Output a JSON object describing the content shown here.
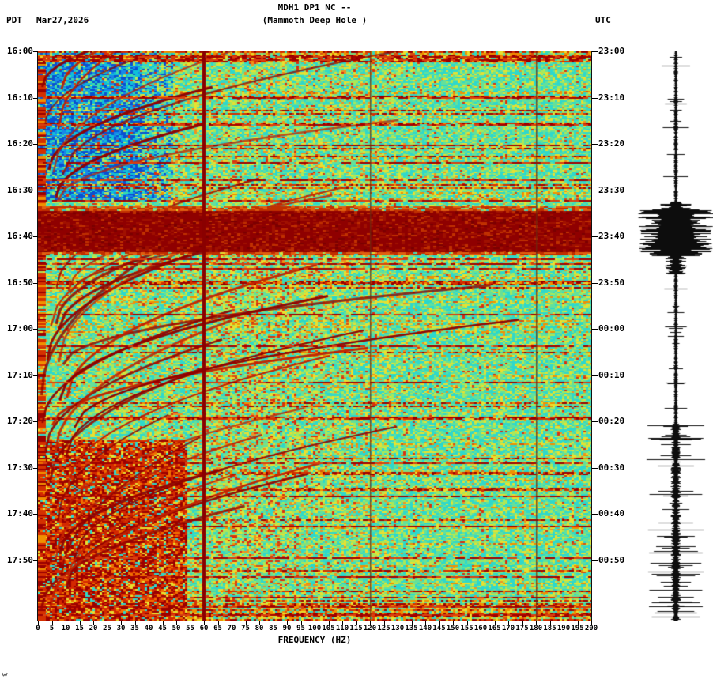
{
  "header": {
    "station_line": "MDH1 DP1 NC --",
    "location_line": "(Mammoth Deep Hole )",
    "tz_left": "PDT",
    "date": "Mar27,2026",
    "tz_right": "UTC"
  },
  "left_axis": {
    "timezone": "PDT",
    "labels": [
      "16:00",
      "16:10",
      "16:20",
      "16:30",
      "16:40",
      "16:50",
      "17:00",
      "17:10",
      "17:20",
      "17:30",
      "17:40",
      "17:50"
    ]
  },
  "right_axis": {
    "timezone": "UTC",
    "labels": [
      "23:00",
      "23:10",
      "23:20",
      "23:30",
      "23:40",
      "23:50",
      "00:00",
      "00:10",
      "00:20",
      "00:30",
      "00:40",
      "00:50"
    ]
  },
  "x_axis": {
    "title": "FREQUENCY (HZ)",
    "tick_labels": [
      "0",
      "5",
      "10",
      "15",
      "20",
      "25",
      "30",
      "35",
      "40",
      "45",
      "50",
      "55",
      "60",
      "65",
      "70",
      "75",
      "80",
      "85",
      "90",
      "95",
      "100",
      "105",
      "110",
      "115",
      "120",
      "125",
      "130",
      "135",
      "140",
      "145",
      "150",
      "155",
      "160",
      "165",
      "170",
      "175",
      "180",
      "185",
      "190",
      "195",
      "200"
    ]
  },
  "chart_data": {
    "type": "heatmap",
    "subtype": "seismic-spectrogram",
    "title": "MDH1 DP1 NC --",
    "subtitle": "(Mammoth Deep Hole )",
    "xlabel": "FREQUENCY (HZ)",
    "x_range_hz": [
      0,
      200
    ],
    "x_tick_step_hz": 5,
    "left_time_axis": {
      "timezone": "PDT",
      "date": "Mar27,2026",
      "first_tick": "16:00",
      "last_tick": "17:50",
      "tick_interval_min": 10
    },
    "right_time_axis": {
      "timezone": "UTC",
      "first_tick": "23:00",
      "last_tick": "00:50",
      "tick_interval_min": 10
    },
    "grid": false,
    "legend_position": "none",
    "colormap": "jet",
    "notable_features": [
      "broadband high-amplitude dark-red band across all frequencies ~16:34-16:43 PDT (23:34-23:43 UTC)",
      "persistent narrowband dark-red vertical line at 60 Hz",
      "faint narrowband vertical lines near 120 Hz and 180 Hz",
      "repeating upward-gliding harmonic red arcs between ~5 and ~130 Hz throughout the record",
      "blue low-power patch 0-35 Hz from 16:00 to ~16:30",
      "strong low-frequency (0-50 Hz) red energy from ~17:22 PDT to end of plot",
      "many thin broadband horizontal noise-burst lines",
      "persistent warm energy along left (lowest frequency) edge"
    ],
    "side_trace": {
      "description": "vertical seismogram amplitude trace, black on white",
      "largest_burst": "aligned with 23:34-23:43 UTC broadband band",
      "elevated_amplitude": "from ~00:20 UTC to end"
    },
    "palette": {
      "cyan": "#2ed8cc",
      "green": "#64e09a",
      "lime": "#aae858",
      "yellow": "#e8e030",
      "orange": "#f09020",
      "red": "#d83010",
      "dark_red": "#8f0000",
      "deep_red": "#7a0000",
      "blue": "#1888e8",
      "deep_blue": "#0a50d0",
      "light_blue": "#10c0d8",
      "line_60hz": "#8a0000",
      "trace": "#000000",
      "text": "#000000",
      "background": "#ffffff"
    }
  }
}
